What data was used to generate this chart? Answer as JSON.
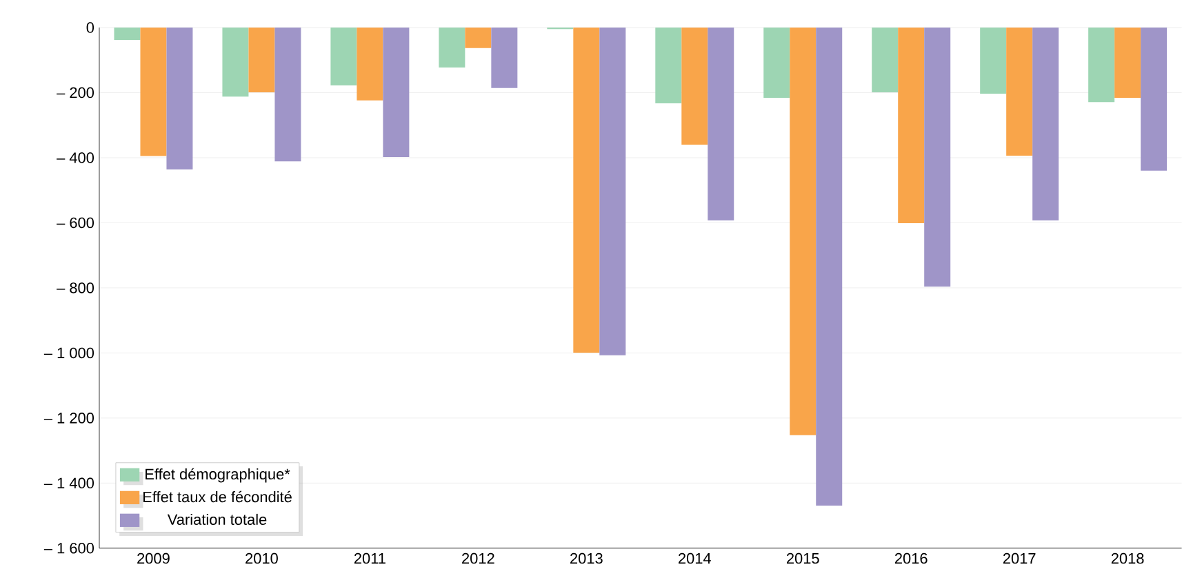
{
  "chart_data": {
    "type": "bar",
    "categories": [
      "2009",
      "2010",
      "2011",
      "2012",
      "2013",
      "2014",
      "2015",
      "2016",
      "2017",
      "2018"
    ],
    "series": [
      {
        "name": "Effet démographique*",
        "color": "#9dd5b3",
        "values": [
          -38,
          -212,
          -178,
          -123,
          -5,
          -233,
          -216,
          -199,
          -203,
          -229
        ]
      },
      {
        "name": "Effet taux de fécondité",
        "color": "#f9a54a",
        "values": [
          -395,
          -199,
          -224,
          -63,
          -999,
          -360,
          -1253,
          -601,
          -394,
          -216
        ]
      },
      {
        "name": "Variation totale",
        "color": "#9f95c8",
        "values": [
          -436,
          -411,
          -398,
          -186,
          -1007,
          -593,
          -1469,
          -796,
          -593,
          -440
        ]
      }
    ],
    "ylim": [
      -1600,
      0
    ],
    "yticks": [
      {
        "value": -1600,
        "label": "– 1 600"
      },
      {
        "value": -1400,
        "label": "– 1 400"
      },
      {
        "value": -1200,
        "label": "– 1 200"
      },
      {
        "value": -1000,
        "label": "– 1 000"
      },
      {
        "value": -800,
        "label": "– 800"
      },
      {
        "value": -600,
        "label": "– 600"
      },
      {
        "value": -400,
        "label": "– 400"
      },
      {
        "value": -200,
        "label": "– 200"
      },
      0
    ],
    "grid": "y",
    "legend": "bottom left"
  }
}
